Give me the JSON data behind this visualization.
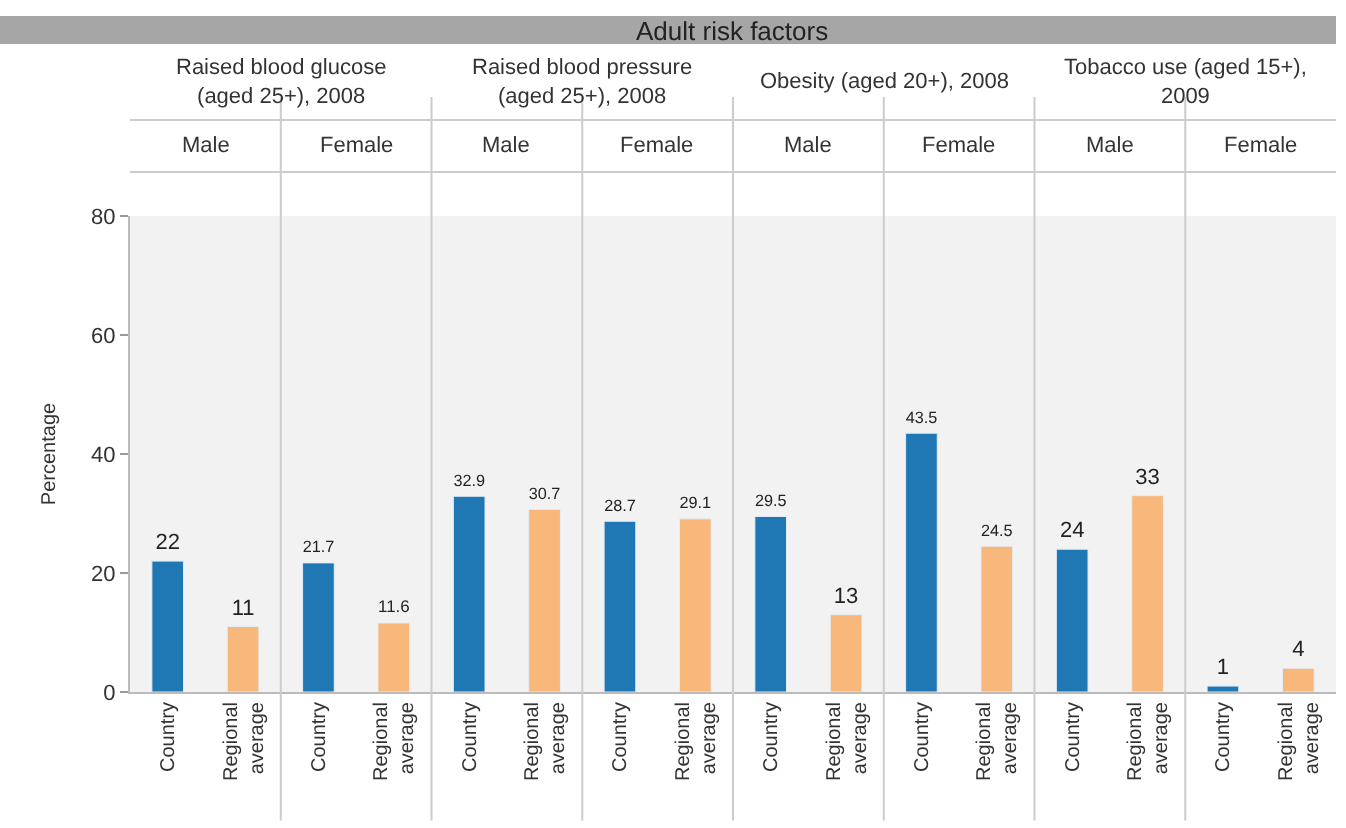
{
  "chart_data": {
    "type": "bar",
    "title": "Adult risk factors",
    "ylabel": "Percentage",
    "categories": [
      "Country",
      "Regional average",
      "Country",
      "Regional average",
      "Country",
      "Regional average",
      "Country",
      "Regional average",
      "Country",
      "Regional average",
      "Country",
      "Regional average",
      "Country",
      "Regional average",
      "Country",
      "Regional average"
    ],
    "values": [
      22,
      11,
      21.7,
      11.6,
      32.9,
      30.7,
      28.7,
      29.1,
      29.5,
      13,
      43.5,
      24.5,
      24,
      33,
      1,
      4
    ],
    "colors": [
      "#1f77b4",
      "#f8b77b",
      "#1f77b4",
      "#f8b77b",
      "#1f77b4",
      "#f8b77b",
      "#1f77b4",
      "#f8b77b",
      "#1f77b4",
      "#f8b77b",
      "#1f77b4",
      "#f8b77b",
      "#1f77b4",
      "#f8b77b",
      "#1f77b4",
      "#f8b77b"
    ],
    "ylim": [
      0,
      80
    ],
    "yticks": [
      0,
      20,
      40,
      60,
      80
    ],
    "data_labels": true,
    "grid": false,
    "legend": false,
    "annotations": [
      "Raised blood glucose (aged 25+), 2008",
      "Raised blood pressure (aged 25+), 2008",
      "Obesity (aged 20+), 2008",
      "Tobacco use (aged 15+), 2009",
      "Male",
      "Female",
      "Male",
      "Female",
      "Male",
      "Female",
      "Male",
      "Female"
    ]
  }
}
